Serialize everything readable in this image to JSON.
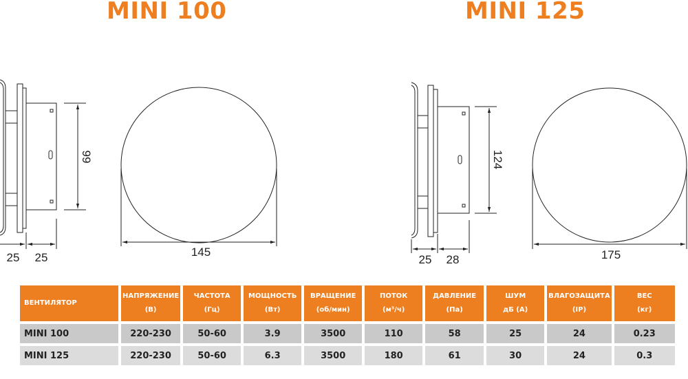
{
  "titles": {
    "left": "MINI 100",
    "right": "MINI 125"
  },
  "colors": {
    "accent": "#ee7f20",
    "row1": "#c9c9c9",
    "row2": "#dcdcdc"
  },
  "drawings": {
    "mini100": {
      "height": "99",
      "front_depth": "25",
      "back_depth": "25",
      "diameter": "145"
    },
    "mini125": {
      "height": "124",
      "front_depth": "25",
      "back_depth": "28",
      "diameter": "175"
    }
  },
  "table": {
    "headers": [
      {
        "l1": "ВЕНТИЛЯТОР",
        "l2": ""
      },
      {
        "l1": "НАПРЯЖЕНИЕ",
        "l2": "(В)"
      },
      {
        "l1": "ЧАСТОТА",
        "l2": "(Гц)"
      },
      {
        "l1": "МОЩНОСТЬ",
        "l2": "(Вт)"
      },
      {
        "l1": "ВРАЩЕНИЕ",
        "l2": "(об/мин)"
      },
      {
        "l1": "ПОТОК",
        "l2": "(м³/ч)"
      },
      {
        "l1": "ДАВЛЕНИЕ",
        "l2": "(Па)"
      },
      {
        "l1": "ШУМ",
        "l2": "дБ (А)"
      },
      {
        "l1": "ВЛАГОЗАЩИТА",
        "l2": "(IP)"
      },
      {
        "l1": "ВЕС",
        "l2": "(кг)"
      }
    ],
    "rows": [
      [
        "MINI 100",
        "220-230",
        "50-60",
        "3.9",
        "3500",
        "110",
        "58",
        "25",
        "24",
        "0.23"
      ],
      [
        "MINI 125",
        "220-230",
        "50-60",
        "6.3",
        "3500",
        "180",
        "61",
        "30",
        "24",
        "0.3"
      ]
    ]
  }
}
